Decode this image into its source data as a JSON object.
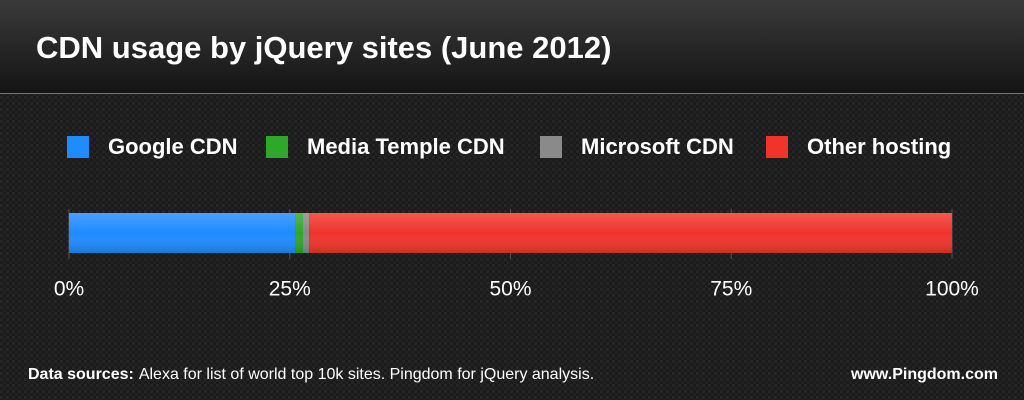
{
  "chart_data": {
    "type": "stacked-bar",
    "orientation": "horizontal",
    "title": "CDN usage by jQuery sites (June 2012)",
    "categories": [
      null
    ],
    "series": [
      {
        "name": "Google CDN",
        "color": "#1e8cff",
        "values": [
          25.6
        ]
      },
      {
        "name": "Media Temple CDN",
        "color": "#2ea82a",
        "values": [
          0.9
        ]
      },
      {
        "name": "Microsoft CDN",
        "color": "#8a8a8a",
        "values": [
          0.7
        ]
      },
      {
        "name": "Other hosting",
        "color": "#f0342c",
        "values": [
          72.8
        ]
      }
    ],
    "xlim": [
      0,
      100
    ],
    "xticks": [
      {
        "value": 0,
        "label": "0%"
      },
      {
        "value": 25,
        "label": "25%"
      },
      {
        "value": 50,
        "label": "50%"
      },
      {
        "value": 75,
        "label": "75%"
      },
      {
        "value": 100,
        "label": "100%"
      }
    ],
    "grid": true,
    "legend": "top",
    "source_label": "Data sources:",
    "source_text": "Alexa for list of world top 10k sites. Pingdom for jQuery analysis.",
    "credit": "www.Pingdom.com"
  }
}
